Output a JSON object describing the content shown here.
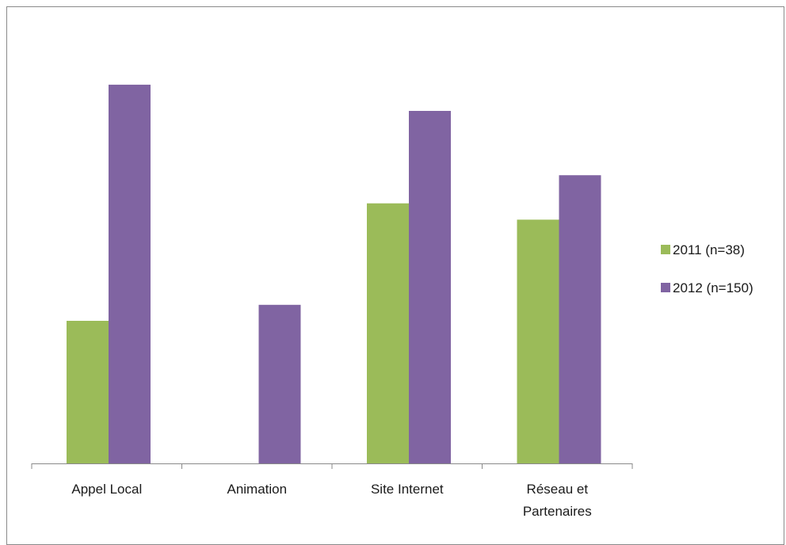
{
  "chart_data": {
    "type": "bar",
    "title": "",
    "xlabel": "",
    "ylabel": "",
    "ylim": [
      0,
      100
    ],
    "grid": false,
    "legend_position": "right",
    "categories": [
      [
        "Appel Local"
      ],
      [
        "Animation"
      ],
      [
        "Site Internet"
      ],
      [
        "Réseau et",
        "Partenaires"
      ]
    ],
    "series": [
      {
        "name": "2011 (n=38)",
        "color": "#9BBB59",
        "values": [
          37.5,
          0,
          68.4,
          64.1
        ]
      },
      {
        "name": "2012 (n=150)",
        "color": "#8064A2",
        "values": [
          99.6,
          41.7,
          92.7,
          75.8
        ]
      }
    ]
  }
}
